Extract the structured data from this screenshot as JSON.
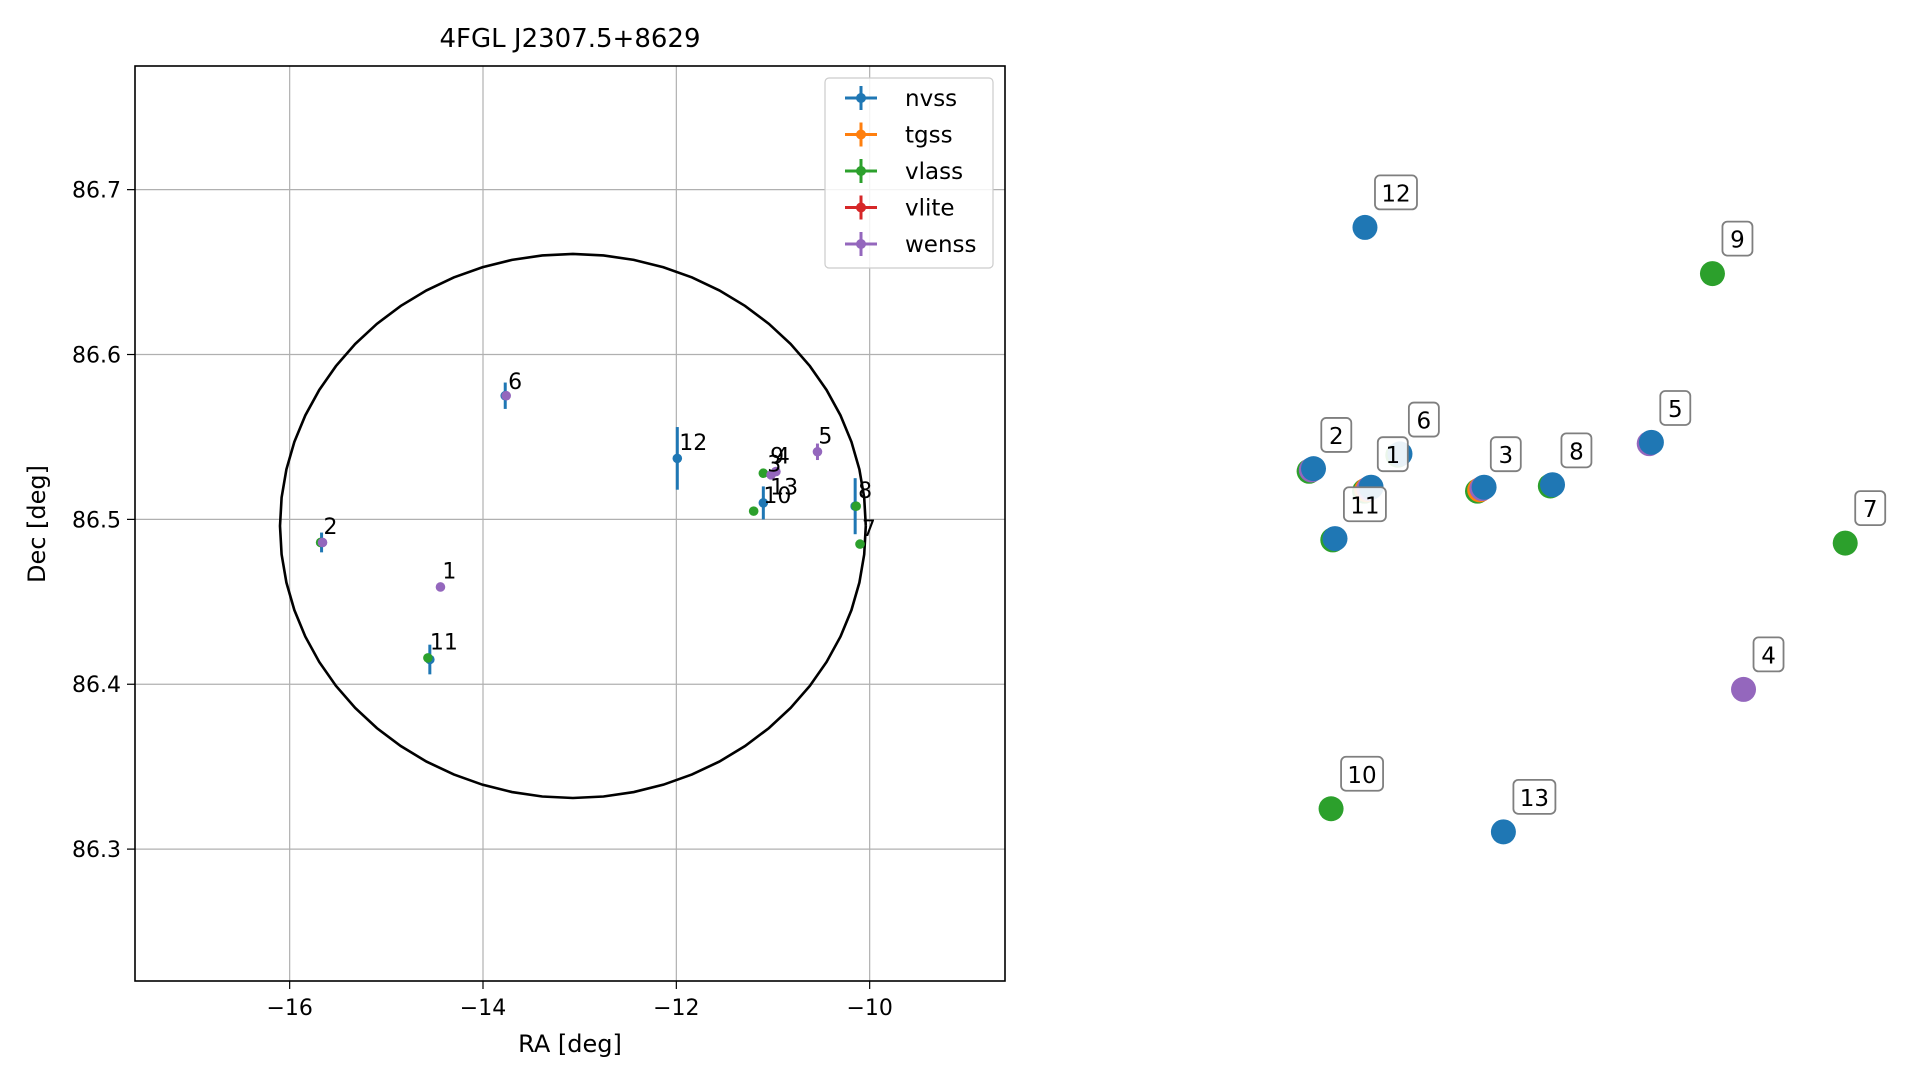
{
  "colors": {
    "nvss": "#1f77b4",
    "tgss": "#ff7f0e",
    "vlass": "#2ca02c",
    "vlite": "#d62728",
    "wenss": "#9467bd"
  },
  "chart_data": [
    {
      "type": "scatter",
      "title": "4FGL J2307.5+8629",
      "xlabel": "RA [deg]",
      "ylabel": "Dec [deg]",
      "xlim": [
        -17.6,
        -8.6
      ],
      "ylim": [
        86.22,
        86.775
      ],
      "xticks": [
        -16,
        -14,
        -12,
        -10
      ],
      "yticks": [
        86.3,
        86.4,
        86.5,
        86.6,
        86.7
      ],
      "xtick_labels": [
        "−16",
        "−14",
        "−12",
        "−10"
      ],
      "ytick_labels": [
        "86.3",
        "86.4",
        "86.5",
        "86.6",
        "86.7"
      ],
      "grid": true,
      "legend_position": "top-right",
      "circle": {
        "center": [
          -13.07,
          86.496
        ],
        "radius_x": 3.03,
        "radius_y": 0.165
      },
      "legend": [
        {
          "key": "nvss",
          "label": "nvss"
        },
        {
          "key": "tgss",
          "label": "tgss"
        },
        {
          "key": "vlass",
          "label": "vlass"
        },
        {
          "key": "vlite",
          "label": "vlite"
        },
        {
          "key": "wenss",
          "label": "wenss"
        }
      ],
      "points": [
        {
          "series": "nvss",
          "ra": -11.99,
          "dec": 86.537,
          "err": 0.019
        },
        {
          "series": "nvss",
          "ra": -11.1,
          "dec": 86.51,
          "err": 0.01
        },
        {
          "series": "nvss",
          "ra": -10.15,
          "dec": 86.508,
          "err": 0.017
        },
        {
          "series": "nvss",
          "ra": -13.77,
          "dec": 86.575,
          "err": 0.008
        },
        {
          "series": "nvss",
          "ra": -15.67,
          "dec": 86.486,
          "err": 0.006
        },
        {
          "series": "nvss",
          "ra": -14.55,
          "dec": 86.415,
          "err": 0.009
        },
        {
          "series": "vlass",
          "ra": -11.1,
          "dec": 86.528,
          "err": 0
        },
        {
          "series": "vlass",
          "ra": -11.2,
          "dec": 86.505,
          "err": 0
        },
        {
          "series": "vlass",
          "ra": -10.14,
          "dec": 86.508,
          "err": 0
        },
        {
          "series": "vlass",
          "ra": -10.1,
          "dec": 86.485,
          "err": 0
        },
        {
          "series": "vlass",
          "ra": -14.57,
          "dec": 86.416,
          "err": 0
        },
        {
          "series": "vlass",
          "ra": -15.68,
          "dec": 86.486,
          "err": 0
        },
        {
          "series": "wenss",
          "ra": -11.02,
          "dec": 86.527,
          "err": 0
        },
        {
          "series": "wenss",
          "ra": -10.97,
          "dec": 86.529,
          "err": 0
        },
        {
          "series": "wenss",
          "ra": -10.54,
          "dec": 86.541,
          "err": 0.005
        },
        {
          "series": "wenss",
          "ra": -13.76,
          "dec": 86.575,
          "err": 0
        },
        {
          "series": "wenss",
          "ra": -14.44,
          "dec": 86.459,
          "err": 0
        },
        {
          "series": "wenss",
          "ra": -15.66,
          "dec": 86.486,
          "err": 0
        }
      ],
      "annotations": [
        {
          "text": "6",
          "ra": -13.74,
          "dec": 86.579
        },
        {
          "text": "12",
          "ra": -11.97,
          "dec": 86.542
        },
        {
          "text": "5",
          "ra": -10.53,
          "dec": 86.546
        },
        {
          "text": "9",
          "ra": -11.03,
          "dec": 86.534
        },
        {
          "text": "4",
          "ra": -10.97,
          "dec": 86.534
        },
        {
          "text": "3",
          "ra": -11.06,
          "dec": 86.529
        },
        {
          "text": "13",
          "ra": -11.03,
          "dec": 86.515
        },
        {
          "text": "10",
          "ra": -11.1,
          "dec": 86.51
        },
        {
          "text": "8",
          "ra": -10.12,
          "dec": 86.513
        },
        {
          "text": "7",
          "ra": -10.08,
          "dec": 86.49
        },
        {
          "text": "2",
          "ra": -15.65,
          "dec": 86.491
        },
        {
          "text": "1",
          "ra": -14.42,
          "dec": 86.464
        },
        {
          "text": "11",
          "ra": -14.55,
          "dec": 86.421
        }
      ]
    },
    {
      "type": "scatter",
      "axes": "off",
      "xlim": [
        0,
        1
      ],
      "ylim": [
        0,
        1
      ],
      "groups": [
        {
          "label": "12",
          "x": 0.115,
          "y": 0.88,
          "markers": [
            "nvss"
          ]
        },
        {
          "label": "9",
          "x": 0.73,
          "y": 0.82,
          "markers": [
            "vlass"
          ]
        },
        {
          "label": "5",
          "x": 0.62,
          "y": 0.6,
          "markers": [
            "wenss",
            "nvss"
          ]
        },
        {
          "label": "6",
          "x": 0.175,
          "y": 0.585,
          "markers": [
            "vlass",
            "nvss"
          ]
        },
        {
          "label": "2",
          "x": 0.02,
          "y": 0.565,
          "markers": [
            "vlass",
            "wenss",
            "nvss"
          ]
        },
        {
          "label": "1",
          "x": 0.12,
          "y": 0.54,
          "markers": [
            "vlass",
            "tgss",
            "wenss",
            "nvss"
          ]
        },
        {
          "label": "3",
          "x": 0.32,
          "y": 0.54,
          "markers": [
            "vlass",
            "tgss",
            "wenss",
            "nvss"
          ]
        },
        {
          "label": "8",
          "x": 0.445,
          "y": 0.545,
          "markers": [
            "vlass",
            "nvss"
          ]
        },
        {
          "label": "11",
          "x": 0.06,
          "y": 0.475,
          "markers": [
            "vlass",
            "nvss"
          ]
        },
        {
          "label": "7",
          "x": 0.965,
          "y": 0.47,
          "markers": [
            "vlass"
          ]
        },
        {
          "label": "4",
          "x": 0.785,
          "y": 0.28,
          "markers": [
            "wenss"
          ]
        },
        {
          "label": "10",
          "x": 0.055,
          "y": 0.125,
          "markers": [
            "vlass"
          ]
        },
        {
          "label": "13",
          "x": 0.36,
          "y": 0.095,
          "markers": [
            "nvss"
          ]
        }
      ]
    }
  ]
}
